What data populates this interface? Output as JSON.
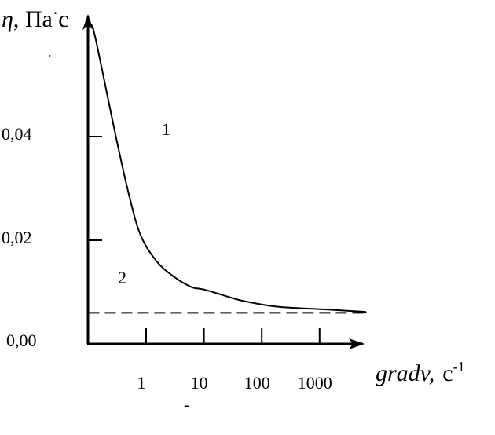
{
  "chart_data": {
    "type": "line",
    "title": "",
    "ylabel": {
      "symbol": "η",
      "text": ", Па",
      "dot": "·",
      "unit": "с"
    },
    "xlabel": {
      "text": "gradv,",
      "unit": "с",
      "exp": "-1"
    },
    "ylim": [
      0,
      0.06
    ],
    "y_ticks": [
      {
        "value": 0.04,
        "label": "0,04"
      },
      {
        "value": 0.02,
        "label": "0,02"
      },
      {
        "value": 0.0,
        "label": "0,00"
      }
    ],
    "x_scale": "log",
    "x_ticks": [
      {
        "value": 1,
        "label": "1"
      },
      {
        "value": 10,
        "label": "10"
      },
      {
        "value": 100,
        "label": "100"
      },
      {
        "value": 1000,
        "label": "1000"
      }
    ],
    "stray_marks": {
      "near_y_axis": ".",
      "below_x_ticks": "-"
    },
    "series": [
      {
        "label": "1",
        "style": "solid",
        "x": [
          0.1,
          0.12,
          0.18,
          0.3,
          0.5,
          0.8,
          1.5,
          3,
          6,
          10,
          20,
          40,
          80,
          150,
          300,
          700,
          1500,
          3000,
          6000,
          8000
        ],
        "y": [
          0.061,
          0.061,
          0.052,
          0.04,
          0.029,
          0.021,
          0.016,
          0.013,
          0.011,
          0.0105,
          0.0095,
          0.0085,
          0.0078,
          0.0073,
          0.007,
          0.0068,
          0.0066,
          0.0064,
          0.0062,
          0.0061
        ]
      },
      {
        "label": "2",
        "style": "dashed",
        "x": [
          0.1,
          8000
        ],
        "y": [
          0.006,
          0.006
        ]
      }
    ]
  }
}
